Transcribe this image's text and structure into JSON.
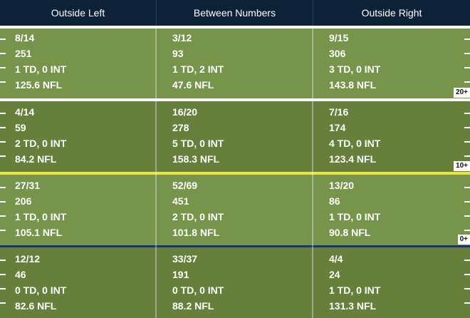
{
  "header": {
    "columns": [
      "Outside Left",
      "Between Numbers",
      "Outside Right"
    ]
  },
  "zones": [
    {
      "yard_label": "20+",
      "cells": [
        {
          "comp": "8/14",
          "yards": "251",
          "tds": "1 TD, 0 INT",
          "rating": "125.6 NFL"
        },
        {
          "comp": "3/12",
          "yards": "93",
          "tds": "1 TD, 2 INT",
          "rating": "47.6 NFL"
        },
        {
          "comp": "9/15",
          "yards": "306",
          "tds": "3 TD, 0 INT",
          "rating": "143.8 NFL"
        }
      ]
    },
    {
      "yard_label": "10+",
      "cells": [
        {
          "comp": "4/14",
          "yards": "59",
          "tds": "2 TD, 0 INT",
          "rating": "84.2 NFL"
        },
        {
          "comp": "16/20",
          "yards": "278",
          "tds": "5 TD, 0 INT",
          "rating": "158.3 NFL"
        },
        {
          "comp": "7/16",
          "yards": "174",
          "tds": "4 TD, 0 INT",
          "rating": "123.4 NFL"
        }
      ]
    },
    {
      "yard_label": "0+",
      "cells": [
        {
          "comp": "27/31",
          "yards": "206",
          "tds": "1 TD, 0 INT",
          "rating": "105.1 NFL"
        },
        {
          "comp": "52/69",
          "yards": "451",
          "tds": "2 TD, 0 INT",
          "rating": "101.8 NFL"
        },
        {
          "comp": "13/20",
          "yards": "86",
          "tds": "1 TD, 0 INT",
          "rating": "90.8 NFL"
        }
      ]
    },
    {
      "yard_label": "",
      "cells": [
        {
          "comp": "12/12",
          "yards": "46",
          "tds": "0 TD, 0 INT",
          "rating": "82.6 NFL"
        },
        {
          "comp": "33/37",
          "yards": "191",
          "tds": "0 TD, 0 INT",
          "rating": "88.2 NFL"
        },
        {
          "comp": "4/4",
          "yards": "24",
          "tds": "1 TD, 0 INT",
          "rating": "131.3 NFL"
        }
      ]
    }
  ],
  "colors": {
    "header_bg": "#0d2138",
    "white_line": "#ffffff",
    "first_down_line": "#f0e040",
    "scrimmage_line": "#1c2f7a"
  }
}
